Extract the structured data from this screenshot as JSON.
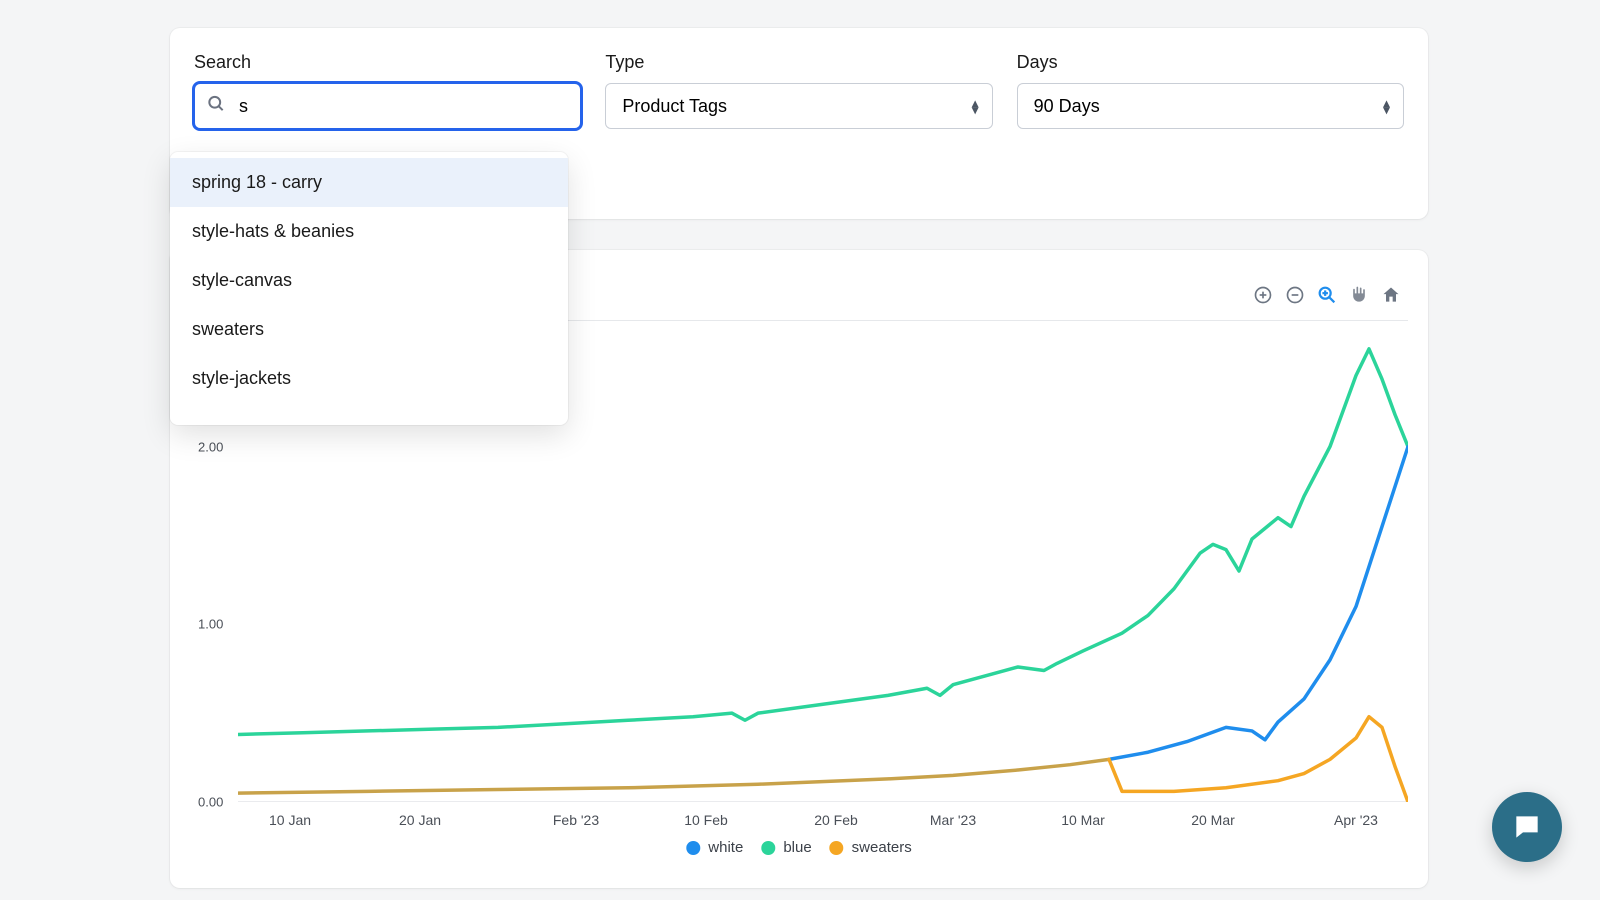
{
  "filters": {
    "search": {
      "label": "Search",
      "value": "s"
    },
    "type": {
      "label": "Type",
      "selected": "Product Tags"
    },
    "days": {
      "label": "Days",
      "selected": "90 Days"
    }
  },
  "autocomplete": {
    "items": [
      "spring 18 - carry",
      "style-hats & beanies",
      "style-canvas",
      "sweaters",
      "style-jackets"
    ],
    "highlighted_index": 0
  },
  "chart": {
    "type": "line",
    "stroke_width": 3.5,
    "background_color": "#ffffff",
    "ylim": [
      0,
      2.6
    ],
    "yticks": [
      {
        "value": 0.0,
        "label": "0.00"
      },
      {
        "value": 1.0,
        "label": "1.00"
      },
      {
        "value": 2.0,
        "label": "2.00"
      }
    ],
    "xlim": [
      0,
      90
    ],
    "xticks": [
      {
        "pos": 4,
        "label": "10 Jan"
      },
      {
        "pos": 14,
        "label": "20 Jan"
      },
      {
        "pos": 26,
        "label": "Feb '23"
      },
      {
        "pos": 36,
        "label": "10 Feb"
      },
      {
        "pos": 46,
        "label": "20 Feb"
      },
      {
        "pos": 55,
        "label": "Mar '23"
      },
      {
        "pos": 65,
        "label": "10 Mar"
      },
      {
        "pos": 75,
        "label": "20 Mar"
      },
      {
        "pos": 86,
        "label": "Apr '23"
      }
    ],
    "tick_fontsize": 13,
    "legend": [
      {
        "label": "white",
        "color": "#1f8ded"
      },
      {
        "label": "blue",
        "color": "#2bd49a"
      },
      {
        "label": "sweaters",
        "color": "#f5a623"
      }
    ],
    "series": [
      {
        "name": "blue",
        "color": "#2bd49a",
        "points": [
          [
            0,
            0.38
          ],
          [
            5,
            0.39
          ],
          [
            10,
            0.4
          ],
          [
            15,
            0.41
          ],
          [
            20,
            0.42
          ],
          [
            25,
            0.44
          ],
          [
            30,
            0.46
          ],
          [
            35,
            0.48
          ],
          [
            38,
            0.5
          ],
          [
            39,
            0.46
          ],
          [
            40,
            0.5
          ],
          [
            45,
            0.55
          ],
          [
            50,
            0.6
          ],
          [
            53,
            0.64
          ],
          [
            54,
            0.6
          ],
          [
            55,
            0.66
          ],
          [
            58,
            0.72
          ],
          [
            60,
            0.76
          ],
          [
            62,
            0.74
          ],
          [
            63,
            0.78
          ],
          [
            65,
            0.85
          ],
          [
            68,
            0.95
          ],
          [
            70,
            1.05
          ],
          [
            72,
            1.2
          ],
          [
            74,
            1.4
          ],
          [
            75,
            1.45
          ],
          [
            76,
            1.42
          ],
          [
            77,
            1.3
          ],
          [
            78,
            1.48
          ],
          [
            80,
            1.6
          ],
          [
            81,
            1.55
          ],
          [
            82,
            1.72
          ],
          [
            84,
            2.0
          ],
          [
            86,
            2.4
          ],
          [
            87,
            2.55
          ],
          [
            88,
            2.38
          ],
          [
            89,
            2.18
          ],
          [
            90,
            2.0
          ]
        ]
      },
      {
        "name": "white",
        "color": "#1f8ded",
        "points": [
          [
            67,
            0.24
          ],
          [
            70,
            0.28
          ],
          [
            73,
            0.34
          ],
          [
            76,
            0.42
          ],
          [
            78,
            0.4
          ],
          [
            79,
            0.35
          ],
          [
            80,
            0.45
          ],
          [
            82,
            0.58
          ],
          [
            84,
            0.8
          ],
          [
            86,
            1.1
          ],
          [
            88,
            1.55
          ],
          [
            90,
            2.0
          ]
        ]
      },
      {
        "name": "sweaters_a",
        "color": "#c8a24a",
        "points": [
          [
            0,
            0.05
          ],
          [
            10,
            0.06
          ],
          [
            20,
            0.07
          ],
          [
            30,
            0.08
          ],
          [
            40,
            0.1
          ],
          [
            50,
            0.13
          ],
          [
            55,
            0.15
          ],
          [
            60,
            0.18
          ],
          [
            64,
            0.21
          ],
          [
            67,
            0.24
          ]
        ]
      },
      {
        "name": "sweaters_b",
        "color": "#f5a623",
        "points": [
          [
            67,
            0.24
          ],
          [
            68,
            0.06
          ],
          [
            72,
            0.06
          ],
          [
            76,
            0.08
          ],
          [
            80,
            0.12
          ],
          [
            82,
            0.16
          ],
          [
            84,
            0.24
          ],
          [
            86,
            0.36
          ],
          [
            87,
            0.48
          ],
          [
            88,
            0.42
          ],
          [
            89,
            0.2
          ],
          [
            90,
            0.0
          ]
        ]
      }
    ],
    "toolbar": {
      "zoom_in": "zoom-in",
      "zoom_out": "zoom-out",
      "zoom_area": "zoom-area",
      "pan": "pan",
      "home": "home",
      "active": "zoom_area"
    }
  },
  "chat_fab_color": "#2b6e88"
}
